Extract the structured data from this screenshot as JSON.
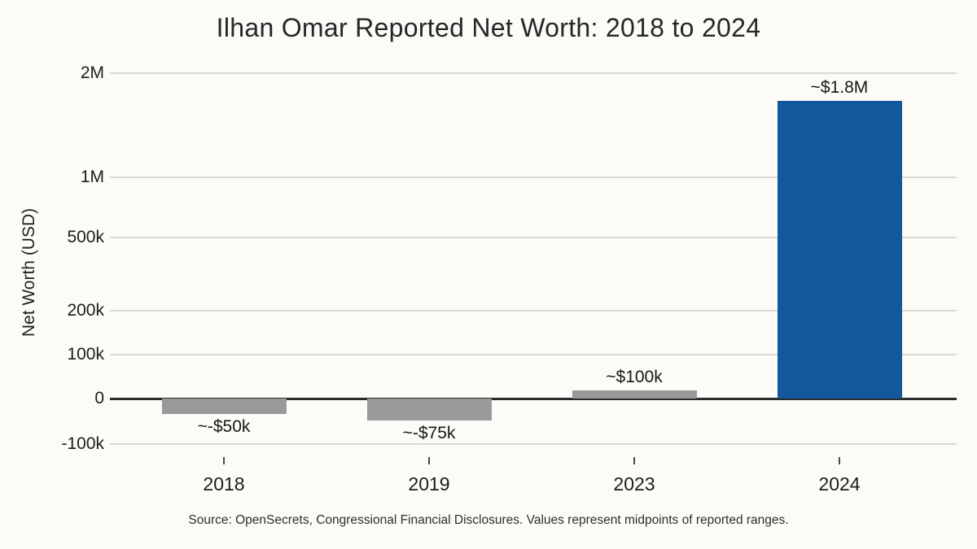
{
  "page": {
    "source_note": "Source: OpenSecrets, Congressional Financial Disclosures. Values represent midpoints of reported ranges."
  },
  "chart_data": {
    "type": "bar",
    "title": "Ilhan Omar Reported Net Worth: 2018 to 2024",
    "xlabel": "",
    "ylabel": "Net Worth (USD)",
    "categories": [
      "2018",
      "2019",
      "2023",
      "2024"
    ],
    "values": [
      -50000,
      -75000,
      100000,
      1800000
    ],
    "value_labels": [
      "~-$50k",
      "~-$75k",
      "~$100k",
      "~$1.8M"
    ],
    "yticks": [
      {
        "label": "2M",
        "value": 2000000
      },
      {
        "label": "1M",
        "value": 1000000
      },
      {
        "label": "500k",
        "value": 500000
      },
      {
        "label": "200k",
        "value": 200000
      },
      {
        "label": "100k",
        "value": 100000
      },
      {
        "label": "0",
        "value": 0
      },
      {
        "label": "-100k",
        "value": -100000
      }
    ],
    "ylim": [
      -150000,
      2200000
    ],
    "grid": "horizontal",
    "legend": "none",
    "bar_colors": [
      "#9a999a",
      "#9a999a",
      "#9a999a",
      "#14589c"
    ],
    "colors": {
      "bar_default": "#9a999a",
      "bar_highlight": "#14589c",
      "background": "#fcfbf8",
      "grid": "#dbd9d5",
      "zero_line": "#2b2b2b",
      "text": "#262626"
    }
  }
}
